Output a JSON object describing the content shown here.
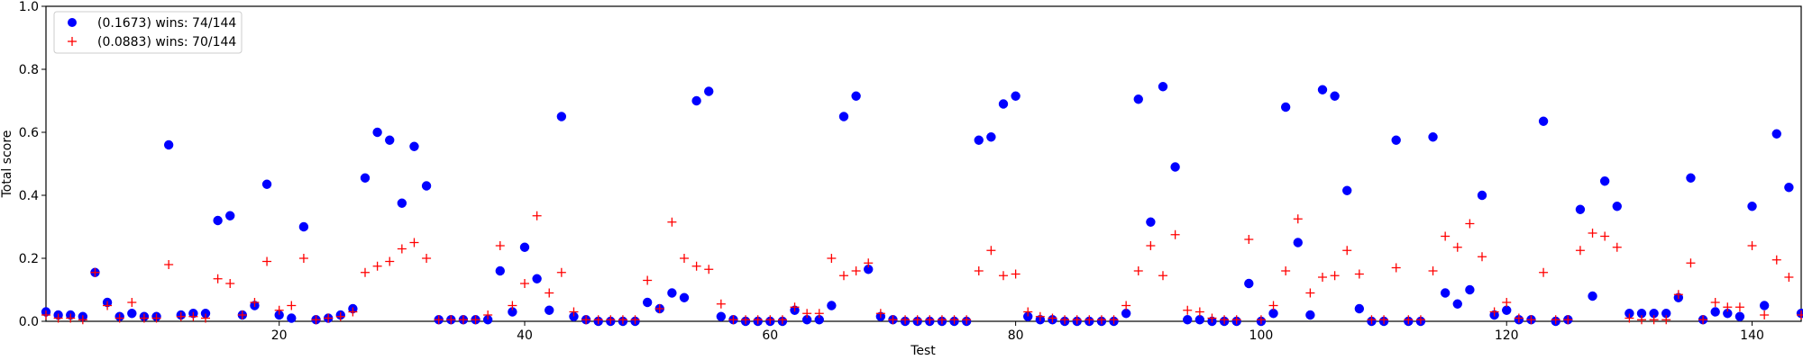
{
  "chart_data": {
    "type": "scatter",
    "xlabel": "Test",
    "ylabel": "Total score",
    "xlim": [
      1,
      144
    ],
    "ylim": [
      0,
      1.0
    ],
    "xticks": [
      20,
      40,
      60,
      80,
      100,
      120,
      140
    ],
    "yticks": [
      0.0,
      0.2,
      0.4,
      0.6,
      0.8,
      1.0
    ],
    "grid": false,
    "legend_position": "top-left",
    "legend": [
      "(0.1673) wins: 74/144",
      "(0.0883) wins: 70/144"
    ],
    "series": [
      {
        "name": "(0.1673) wins: 74/144",
        "marker": "circle",
        "color": "#0000ff",
        "x": [
          1,
          2,
          3,
          4,
          5,
          6,
          7,
          8,
          9,
          10,
          11,
          12,
          13,
          14,
          15,
          16,
          17,
          18,
          19,
          20,
          21,
          22,
          23,
          24,
          25,
          26,
          27,
          28,
          29,
          30,
          31,
          32,
          33,
          34,
          35,
          36,
          37,
          38,
          39,
          40,
          41,
          42,
          43,
          44,
          45,
          46,
          47,
          48,
          49,
          50,
          51,
          52,
          53,
          54,
          55,
          56,
          57,
          58,
          59,
          60,
          61,
          62,
          63,
          64,
          65,
          66,
          67,
          68,
          69,
          70,
          71,
          72,
          73,
          74,
          75,
          76,
          77,
          78,
          79,
          80,
          81,
          82,
          83,
          84,
          85,
          86,
          87,
          88,
          89,
          90,
          91,
          92,
          93,
          94,
          95,
          96,
          97,
          98,
          99,
          100,
          101,
          102,
          103,
          104,
          105,
          106,
          107,
          108,
          109,
          110,
          111,
          112,
          113,
          114,
          115,
          116,
          117,
          118,
          119,
          120,
          121,
          122,
          123,
          124,
          125,
          126,
          127,
          128,
          129,
          130,
          131,
          132,
          133,
          134,
          135,
          136,
          137,
          138,
          139,
          140,
          141,
          142,
          143,
          144
        ],
        "y": [
          0.03,
          0.02,
          0.02,
          0.015,
          0.155,
          0.06,
          0.015,
          0.025,
          0.015,
          0.015,
          0.56,
          0.02,
          0.025,
          0.025,
          0.32,
          0.335,
          0.02,
          0.05,
          0.435,
          0.02,
          0.01,
          0.3,
          0.005,
          0.01,
          0.02,
          0.04,
          0.455,
          0.6,
          0.575,
          0.375,
          0.555,
          0.43,
          0.005,
          0.005,
          0.005,
          0.005,
          0.005,
          0.16,
          0.03,
          0.235,
          0.135,
          0.035,
          0.65,
          0.015,
          0.005,
          0.0,
          0.0,
          0.0,
          0.0,
          0.06,
          0.04,
          0.09,
          0.075,
          0.7,
          0.73,
          0.015,
          0.005,
          0.0,
          0.0,
          0.0,
          0.0,
          0.035,
          0.005,
          0.005,
          0.05,
          0.65,
          0.715,
          0.165,
          0.015,
          0.005,
          0.0,
          0.0,
          0.0,
          0.0,
          0.0,
          0.0,
          0.575,
          0.585,
          0.69,
          0.715,
          0.015,
          0.005,
          0.005,
          0.0,
          0.0,
          0.0,
          0.0,
          0.0,
          0.025,
          0.705,
          0.315,
          0.745,
          0.49,
          0.005,
          0.005,
          0.0,
          0.0,
          0.0,
          0.12,
          0.0,
          0.025,
          0.68,
          0.25,
          0.02,
          0.735,
          0.715,
          0.415,
          0.04,
          0.0,
          0.0,
          0.575,
          0.0,
          0.0,
          0.585,
          0.09,
          0.055,
          0.1,
          0.4,
          0.02,
          0.035,
          0.005,
          0.005,
          0.635,
          0.0,
          0.005,
          0.355,
          0.08,
          0.445,
          0.365,
          0.025,
          0.025,
          0.025,
          0.025,
          0.075,
          0.455,
          0.005,
          0.03,
          0.025,
          0.015,
          0.365,
          0.05,
          0.595,
          0.425,
          0.025
        ]
      },
      {
        "name": "(0.0883) wins: 70/144",
        "marker": "plus",
        "color": "#ff0000",
        "x": [
          1,
          2,
          3,
          4,
          5,
          6,
          7,
          8,
          9,
          10,
          11,
          12,
          13,
          14,
          15,
          16,
          17,
          18,
          19,
          20,
          21,
          22,
          23,
          24,
          25,
          26,
          27,
          28,
          29,
          30,
          31,
          32,
          33,
          34,
          35,
          36,
          37,
          38,
          39,
          40,
          41,
          42,
          43,
          44,
          45,
          46,
          47,
          48,
          49,
          50,
          51,
          52,
          53,
          54,
          55,
          56,
          57,
          58,
          59,
          60,
          61,
          62,
          63,
          64,
          65,
          66,
          67,
          68,
          69,
          70,
          71,
          72,
          73,
          74,
          75,
          76,
          77,
          78,
          79,
          80,
          81,
          82,
          83,
          84,
          85,
          86,
          87,
          88,
          89,
          90,
          91,
          92,
          93,
          94,
          95,
          96,
          97,
          98,
          99,
          100,
          101,
          102,
          103,
          104,
          105,
          106,
          107,
          108,
          109,
          110,
          111,
          112,
          113,
          114,
          115,
          116,
          117,
          118,
          119,
          120,
          121,
          122,
          123,
          124,
          125,
          126,
          127,
          128,
          129,
          130,
          131,
          132,
          133,
          134,
          135,
          136,
          137,
          138,
          139,
          140,
          141,
          142,
          143,
          144
        ],
        "y": [
          0.02,
          0.01,
          0.01,
          0.005,
          0.155,
          0.05,
          0.01,
          0.06,
          0.01,
          0.01,
          0.18,
          0.015,
          0.015,
          0.01,
          0.135,
          0.12,
          0.02,
          0.06,
          0.19,
          0.035,
          0.05,
          0.2,
          0.005,
          0.01,
          0.015,
          0.03,
          0.155,
          0.175,
          0.19,
          0.23,
          0.25,
          0.2,
          0.005,
          0.005,
          0.005,
          0.005,
          0.02,
          0.24,
          0.05,
          0.12,
          0.335,
          0.09,
          0.155,
          0.03,
          0.005,
          0.005,
          0.005,
          0.005,
          0.005,
          0.13,
          0.04,
          0.315,
          0.2,
          0.175,
          0.165,
          0.055,
          0.005,
          0.005,
          0.005,
          0.005,
          0.005,
          0.045,
          0.025,
          0.025,
          0.2,
          0.145,
          0.16,
          0.185,
          0.025,
          0.005,
          0.005,
          0.005,
          0.005,
          0.005,
          0.005,
          0.005,
          0.16,
          0.225,
          0.145,
          0.15,
          0.03,
          0.015,
          0.01,
          0.005,
          0.005,
          0.005,
          0.005,
          0.005,
          0.05,
          0.16,
          0.24,
          0.145,
          0.275,
          0.035,
          0.03,
          0.01,
          0.005,
          0.005,
          0.26,
          0.005,
          0.05,
          0.16,
          0.325,
          0.09,
          0.14,
          0.145,
          0.225,
          0.15,
          0.005,
          0.005,
          0.17,
          0.005,
          0.005,
          0.16,
          0.27,
          0.235,
          0.31,
          0.205,
          0.03,
          0.06,
          0.01,
          0.005,
          0.155,
          0.005,
          0.005,
          0.225,
          0.28,
          0.27,
          0.235,
          0.01,
          0.005,
          0.005,
          0.005,
          0.085,
          0.185,
          0.005,
          0.06,
          0.045,
          0.045,
          0.24,
          0.02,
          0.195,
          0.14,
          0.02
        ]
      }
    ]
  }
}
